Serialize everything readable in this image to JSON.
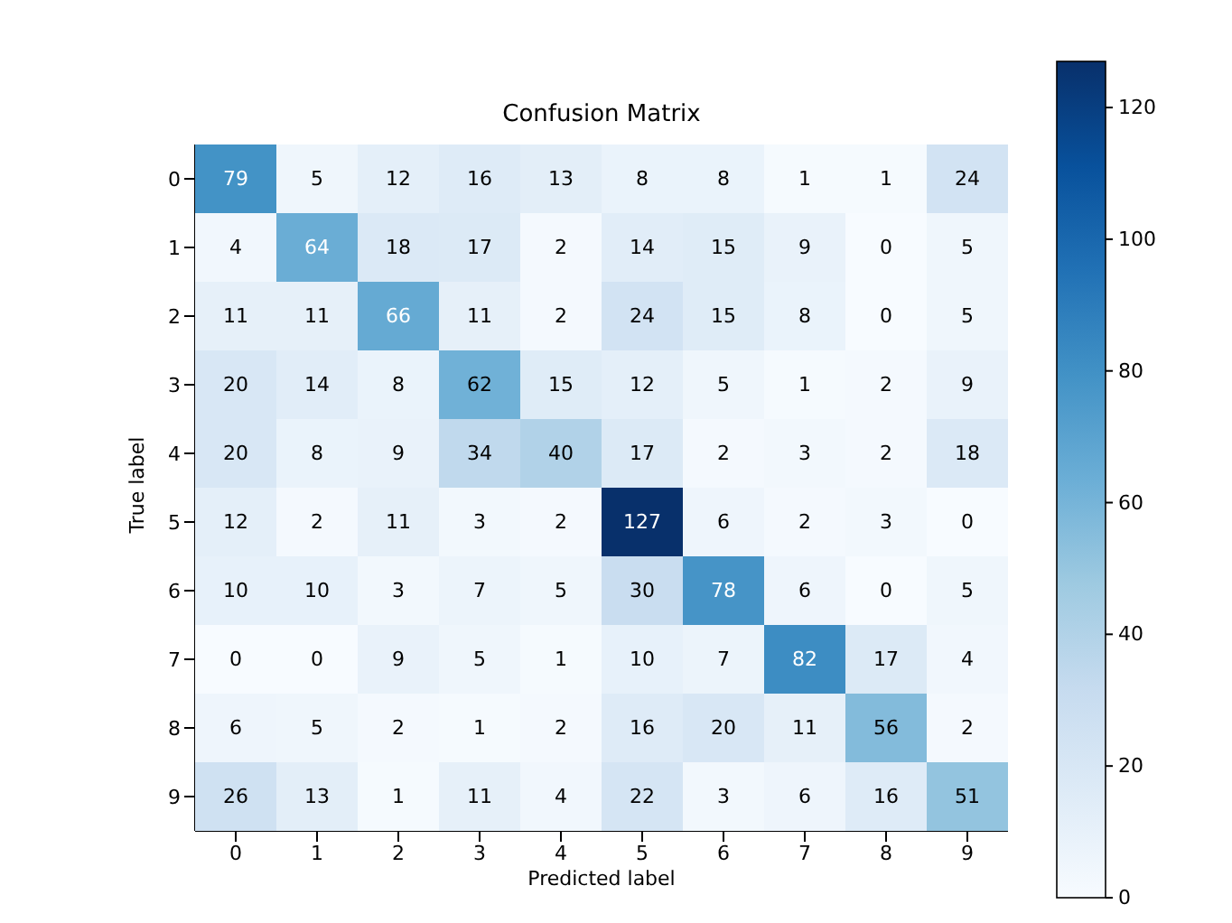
{
  "chart_data": {
    "type": "heatmap",
    "title": "Confusion Matrix",
    "xlabel": "Predicted label",
    "ylabel": "True label",
    "categories": [
      "0",
      "1",
      "2",
      "3",
      "4",
      "5",
      "6",
      "7",
      "8",
      "9"
    ],
    "y_categories": [
      "0",
      "1",
      "2",
      "3",
      "4",
      "5",
      "6",
      "7",
      "8",
      "9"
    ],
    "cells": [
      [
        79,
        5,
        12,
        16,
        13,
        8,
        8,
        1,
        1,
        24
      ],
      [
        4,
        64,
        18,
        17,
        2,
        14,
        15,
        9,
        0,
        5
      ],
      [
        11,
        11,
        66,
        11,
        2,
        24,
        15,
        8,
        0,
        5
      ],
      [
        20,
        14,
        8,
        62,
        15,
        12,
        5,
        1,
        2,
        9
      ],
      [
        20,
        8,
        9,
        34,
        40,
        17,
        2,
        3,
        2,
        18
      ],
      [
        12,
        2,
        11,
        3,
        2,
        127,
        6,
        2,
        3,
        0
      ],
      [
        10,
        10,
        3,
        7,
        5,
        30,
        78,
        6,
        0,
        5
      ],
      [
        0,
        0,
        9,
        5,
        1,
        10,
        7,
        82,
        17,
        4
      ],
      [
        6,
        5,
        2,
        1,
        2,
        16,
        20,
        11,
        56,
        2
      ],
      [
        26,
        13,
        1,
        11,
        4,
        22,
        3,
        6,
        16,
        51
      ]
    ],
    "clim": [
      0,
      127
    ],
    "cticks": [
      0,
      20,
      40,
      60,
      80,
      100,
      120
    ],
    "data_labels": true
  }
}
